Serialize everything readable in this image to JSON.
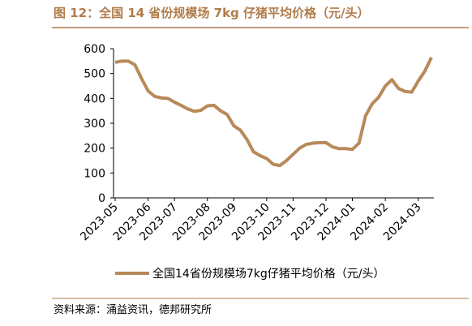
{
  "chart_data": {
    "type": "line",
    "title": "图 12：全国 14 省份规模场 7kg 仔猪平均价格（元/头）",
    "source": "资料来源：涌益资讯，德邦研究所",
    "categories": [
      "2023-05",
      null,
      null,
      null,
      null,
      "2023-06",
      null,
      null,
      null,
      "2023-07",
      null,
      null,
      null,
      null,
      "2023-08",
      null,
      null,
      null,
      "2023-09",
      null,
      null,
      null,
      null,
      "2023-10",
      null,
      null,
      null,
      "2023-11",
      null,
      null,
      null,
      null,
      "2023-12",
      null,
      null,
      null,
      "2024-01",
      null,
      null,
      null,
      null,
      "2024-02",
      null,
      null,
      null,
      null,
      "2024-03",
      null,
      null
    ],
    "series": [
      {
        "name": "全国14省份规模场7kg仔猪平均价格（元/头）",
        "color": "#b8895a",
        "values": [
          545,
          550,
          550,
          535,
          480,
          430,
          408,
          402,
          400,
          385,
          372,
          358,
          348,
          352,
          370,
          372,
          350,
          335,
          290,
          272,
          235,
          185,
          170,
          158,
          135,
          130,
          150,
          175,
          200,
          215,
          220,
          222,
          222,
          205,
          198,
          198,
          195,
          220,
          330,
          378,
          405,
          450,
          475,
          440,
          428,
          425,
          470,
          510,
          565
        ]
      }
    ],
    "ylim": [
      0,
      600
    ],
    "yticks": [
      0,
      100,
      200,
      300,
      400,
      500,
      600
    ]
  }
}
